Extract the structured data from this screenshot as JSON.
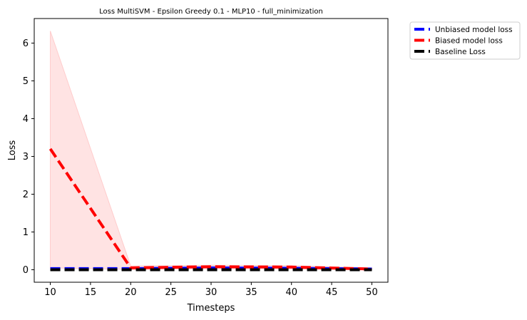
{
  "chart_data": {
    "type": "line",
    "title": "Loss MultiSVM - Epsilon Greedy 0.1 - MLP10 - full_minimization",
    "xlabel": "Timesteps",
    "ylabel": "Loss",
    "xlim": [
      8,
      52
    ],
    "ylim": [
      -0.33,
      6.65
    ],
    "xticks": [
      10,
      15,
      20,
      25,
      30,
      35,
      40,
      45,
      50
    ],
    "yticks": [
      0,
      1,
      2,
      3,
      4,
      5,
      6
    ],
    "x": [
      10,
      20,
      30,
      40,
      50
    ],
    "series": [
      {
        "name": "Unbiased model loss",
        "color": "#0000ff",
        "style": "dashed",
        "values": [
          0.03,
          0.03,
          0.05,
          0.04,
          0.02
        ]
      },
      {
        "name": "Biased model loss",
        "color": "#ff0000",
        "style": "dashed",
        "values": [
          3.2,
          0.05,
          0.08,
          0.07,
          0.02
        ],
        "band_lower": [
          0.05,
          0.01,
          0.03,
          0.03,
          0.0
        ],
        "band_upper": [
          6.32,
          0.1,
          0.12,
          0.11,
          0.05
        ],
        "band_color": "#ffcccc"
      },
      {
        "name": "Baseline Loss",
        "color": "#000000",
        "style": "dashed",
        "values": [
          0.0,
          0.0,
          0.0,
          0.0,
          0.0
        ]
      }
    ],
    "legend_position": "outside-top-right",
    "grid": false
  }
}
